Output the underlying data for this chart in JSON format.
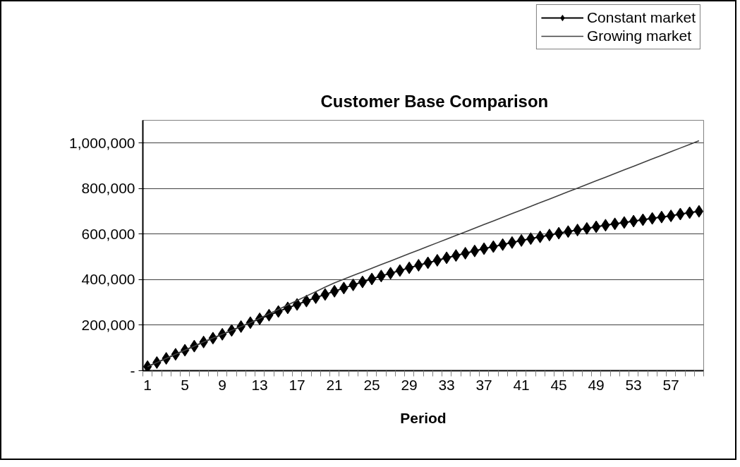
{
  "chart_data": {
    "type": "line",
    "title": "Customer Base Comparison",
    "xlabel": "Period",
    "categories": [
      "1",
      null,
      null,
      null,
      "5",
      null,
      null,
      null,
      "9",
      null,
      null,
      null,
      "13",
      null,
      null,
      null,
      "17",
      null,
      null,
      null,
      "21",
      null,
      null,
      null,
      "25",
      null,
      null,
      null,
      "29",
      null,
      null,
      null,
      "33",
      null,
      null,
      null,
      "37",
      null,
      null,
      null,
      "41",
      null,
      null,
      null,
      "45",
      null,
      null,
      null,
      "49",
      null,
      null,
      null,
      "53",
      null,
      null,
      null,
      "57",
      null,
      null,
      null
    ],
    "series": [
      {
        "name": "Constant market",
        "color": "#000000",
        "marker": "diamond",
        "values": [
          18000,
          36000,
          54000,
          72000,
          90000,
          108000,
          126000,
          143000,
          160000,
          177000,
          194000,
          211000,
          228000,
          244000,
          260000,
          276000,
          291000,
          306000,
          321000,
          335000,
          349000,
          363000,
          377000,
          390000,
          403000,
          416000,
          428000,
          440000,
          452000,
          463000,
          474000,
          485000,
          496000,
          506000,
          516000,
          526000,
          536000,
          545000,
          554000,
          563000,
          572000,
          580000,
          588000,
          596000,
          604000,
          611000,
          618000,
          625000,
          632000,
          639000,
          645000,
          651000,
          657000,
          663000,
          669000,
          675000,
          680000,
          688000,
          694000,
          700000
        ]
      },
      {
        "name": "Growing market",
        "color": "#404040",
        "marker": "none",
        "values": [
          18000,
          36000,
          54000,
          72000,
          90000,
          108000,
          126000,
          143000,
          160000,
          177000,
          194000,
          211000,
          230000,
          250000,
          269000,
          289000,
          308000,
          328000,
          347000,
          367000,
          386000,
          402000,
          418000,
          434000,
          450000,
          466000,
          482000,
          498000,
          514000,
          530000,
          546000,
          562000,
          578000,
          594000,
          610000,
          626000,
          642000,
          658000,
          674000,
          690000,
          706000,
          722000,
          738000,
          754000,
          770000,
          786000,
          802000,
          818000,
          834000,
          850000,
          866000,
          882000,
          898000,
          914000,
          930000,
          946000,
          962000,
          978000,
          994000,
          1010000
        ]
      }
    ],
    "ylim": [
      0,
      1100000
    ],
    "yticks": [
      {
        "value": 0,
        "label": "-"
      },
      {
        "value": 200000,
        "label": "200,000"
      },
      {
        "value": 400000,
        "label": "400,000"
      },
      {
        "value": 600000,
        "label": "600,000"
      },
      {
        "value": 800000,
        "label": "800,000"
      },
      {
        "value": 1000000,
        "label": "1,000,000"
      }
    ],
    "grid": "y",
    "legend": "top right",
    "line_style": "solid"
  }
}
